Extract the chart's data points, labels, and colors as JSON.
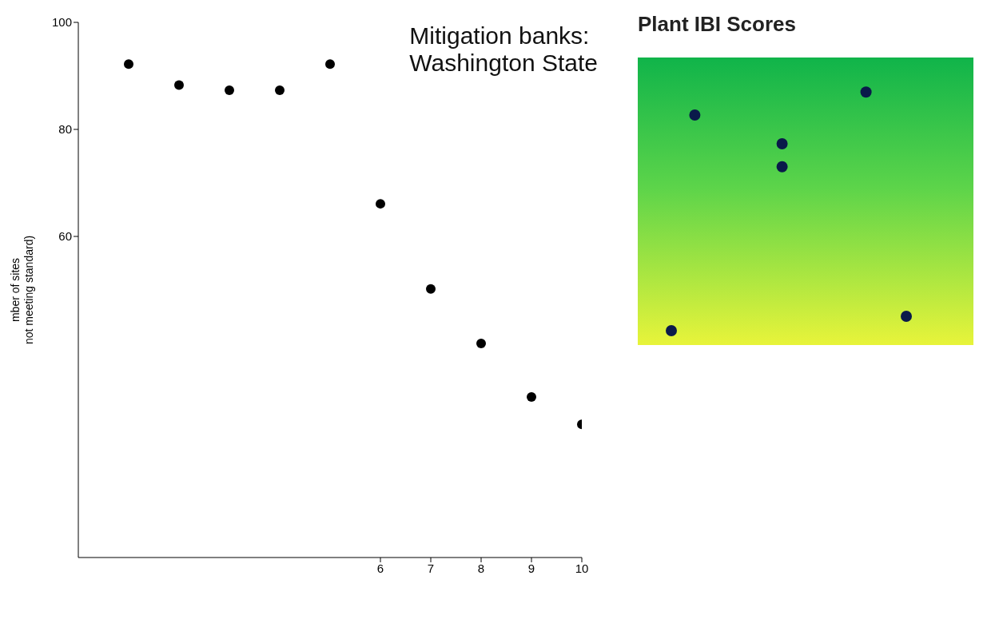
{
  "chart_data": [
    {
      "type": "scatter",
      "ylabel": "mber of sites\nnot meeting standard)",
      "annotations": [
        "Mitigation banks:\nWashington State"
      ],
      "x": [
        1,
        2,
        3,
        4,
        5,
        6,
        7,
        8,
        9,
        10
      ],
      "series": [
        {
          "color": "#000000",
          "values": [
            92.2,
            88.3,
            87.3,
            87.3,
            92.2,
            66.1,
            50.2,
            40,
            30,
            24.9
          ]
        }
      ],
      "xlim": [
        0,
        10
      ],
      "xticks": [
        6,
        7,
        8,
        9,
        10
      ],
      "ylim": [
        0,
        100
      ],
      "yticks": [
        60,
        80,
        100
      ],
      "grid": false,
      "legend": false,
      "marker": "circle"
    },
    {
      "type": "other",
      "title": "Plant IBI Scores"
    }
  ]
}
